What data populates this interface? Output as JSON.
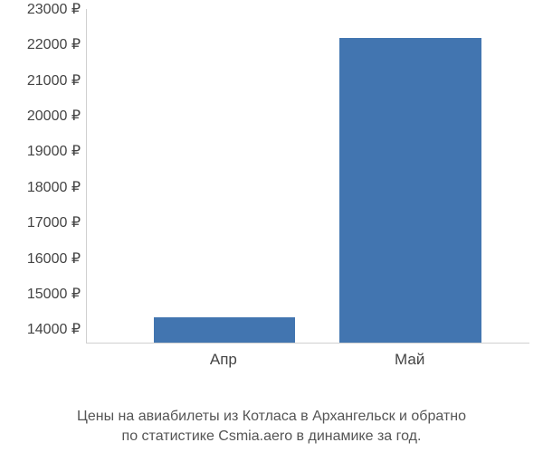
{
  "chart": {
    "type": "bar",
    "y_min": 13600,
    "y_max": 23000,
    "y_ticks": [
      14000,
      15000,
      16000,
      17000,
      18000,
      19000,
      20000,
      21000,
      22000,
      23000
    ],
    "y_tick_suffix": " ₽",
    "axis_color": "#d0d0d0",
    "tick_font_size": 16,
    "tick_color": "#444444",
    "bars": [
      {
        "label": "Апр",
        "value": 14300,
        "color": "#4275b0",
        "left_pct": 15,
        "width_pct": 32
      },
      {
        "label": "Май",
        "value": 22150,
        "color": "#4275b0",
        "left_pct": 57,
        "width_pct": 32
      }
    ],
    "background": "#ffffff"
  },
  "caption": {
    "line1": "Цены на авиабилеты из Котласа в Архангельск и обратно",
    "line2": "по статистике Csmia.aero в динамике за год.",
    "font_size": 16,
    "color": "#555555"
  }
}
